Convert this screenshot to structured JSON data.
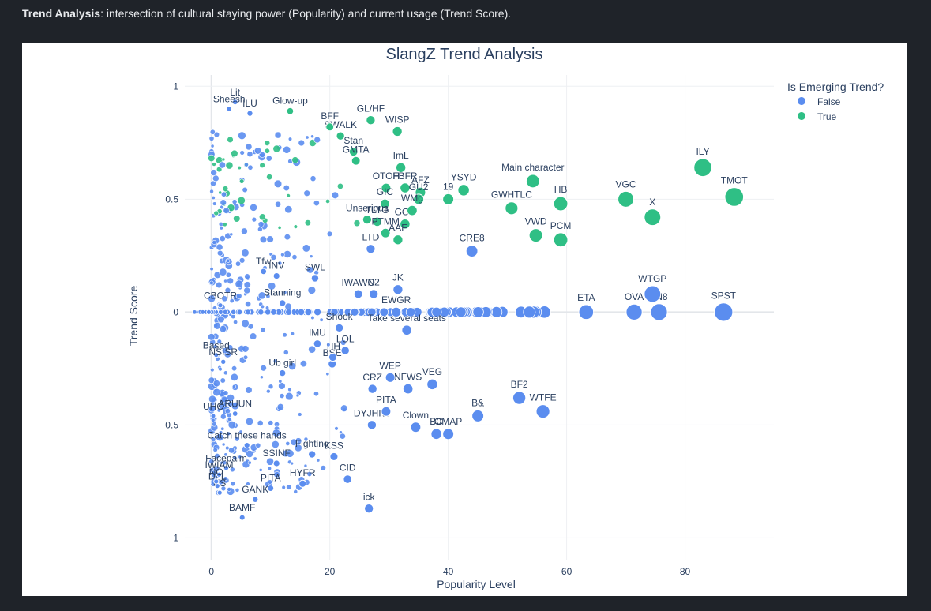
{
  "caption": {
    "bold": "Trend Analysis",
    "rest": ": intersection of cultural staying power (Popularity) and current usage (Trend Score)."
  },
  "colors": {
    "false": "#5b8def",
    "true": "#2fbf85",
    "background": "#1f2329"
  },
  "chart_data": {
    "type": "scatter",
    "title": "SlangZ Trend Analysis",
    "xlabel": "Popularity Level",
    "ylabel": "Trend Score",
    "xlim": [
      -4.5,
      95
    ],
    "ylim": [
      -1.1,
      1.05
    ],
    "xticks": [
      0,
      20,
      40,
      60,
      80
    ],
    "yticks": [
      -1,
      -0.5,
      0,
      0.5,
      1
    ],
    "ytick_labels": [
      "−1",
      "−0.5",
      "0",
      "0.5",
      "1"
    ],
    "legend": {
      "title": "Is Emerging Trend?",
      "position": "top-right",
      "entries": [
        "False",
        "True"
      ]
    },
    "series": [
      {
        "name": "True",
        "points": [
          {
            "label": "ILY",
            "x": 83.0,
            "y": 0.64
          },
          {
            "label": "TMOT",
            "x": 88.3,
            "y": 0.51
          },
          {
            "label": "VGC",
            "x": 70.0,
            "y": 0.5
          },
          {
            "label": "X",
            "x": 74.5,
            "y": 0.42
          },
          {
            "label": "HB",
            "x": 59.0,
            "y": 0.48
          },
          {
            "label": "PCM",
            "x": 59.0,
            "y": 0.32
          },
          {
            "label": "VWD",
            "x": 54.8,
            "y": 0.34
          },
          {
            "label": "GWHTLC",
            "x": 50.7,
            "y": 0.46
          },
          {
            "label": "Main character",
            "x": 54.3,
            "y": 0.58
          },
          {
            "label": "YSYD",
            "x": 42.6,
            "y": 0.54
          },
          {
            "label": "19",
            "x": 40.0,
            "y": 0.5
          },
          {
            "label": "AFZ",
            "x": 35.3,
            "y": 0.53
          },
          {
            "label": "GL/HF",
            "x": 26.9,
            "y": 0.85
          },
          {
            "label": "WISP",
            "x": 31.4,
            "y": 0.8
          },
          {
            "label": "ImL",
            "x": 32.0,
            "y": 0.64
          },
          {
            "label": "Stan",
            "x": 24.0,
            "y": 0.71
          },
          {
            "label": "SWALK",
            "x": 21.8,
            "y": 0.78
          },
          {
            "label": "BFF",
            "x": 20.0,
            "y": 0.82
          },
          {
            "label": "Glow-up",
            "x": 13.3,
            "y": 0.89
          },
          {
            "label": "GMTA",
            "x": 24.4,
            "y": 0.67
          },
          {
            "label": "OTOH",
            "x": 29.5,
            "y": 0.55
          },
          {
            "label": "FBFR",
            "x": 32.7,
            "y": 0.55
          },
          {
            "label": "GU2",
            "x": 35.0,
            "y": 0.5
          },
          {
            "label": "GIC",
            "x": 29.3,
            "y": 0.48
          },
          {
            "label": "TLTG",
            "x": 28.0,
            "y": 0.4
          },
          {
            "label": "PTMM",
            "x": 29.4,
            "y": 0.35
          },
          {
            "label": "GCR",
            "x": 32.7,
            "y": 0.39
          },
          {
            "label": "AAF",
            "x": 31.5,
            "y": 0.32
          },
          {
            "label": "WMg",
            "x": 33.9,
            "y": 0.45
          },
          {
            "label": "Unserious",
            "x": 26.3,
            "y": 0.41
          }
        ]
      },
      {
        "name": "False",
        "points": [
          {
            "label": "SPST",
            "x": 86.5,
            "y": 0.0
          },
          {
            "label": "2N8",
            "x": 75.6,
            "y": 0.0
          },
          {
            "label": "OVA",
            "x": 71.4,
            "y": 0.0
          },
          {
            "label": "ETA",
            "x": 63.3,
            "y": 0.0
          },
          {
            "label": "WTGP",
            "x": 74.5,
            "y": 0.08
          },
          {
            "label": "BF2",
            "x": 52.0,
            "y": -0.38
          },
          {
            "label": "WTFE",
            "x": 56.0,
            "y": -0.44
          },
          {
            "label": "B&",
            "x": 45.0,
            "y": -0.46
          },
          {
            "label": "CRE8",
            "x": 44.0,
            "y": 0.27
          },
          {
            "label": "BC",
            "x": 38.0,
            "y": -0.54
          },
          {
            "label": "OMAP",
            "x": 40.0,
            "y": -0.54
          },
          {
            "label": "Clown",
            "x": 34.5,
            "y": -0.51
          },
          {
            "label": "VEG",
            "x": 37.3,
            "y": -0.32
          },
          {
            "label": "NFWS",
            "x": 33.2,
            "y": -0.34
          },
          {
            "label": "WEP",
            "x": 30.2,
            "y": -0.29
          },
          {
            "label": "CRZ",
            "x": 27.2,
            "y": -0.34
          },
          {
            "label": "ick",
            "x": 26.6,
            "y": -0.87
          },
          {
            "label": "CID",
            "x": 23.0,
            "y": -0.74
          },
          {
            "label": "HYFR",
            "x": 15.4,
            "y": -0.76
          },
          {
            "label": "PITA",
            "x": 10.0,
            "y": -0.78
          },
          {
            "label": "GANK",
            "x": 7.4,
            "y": -0.83
          },
          {
            "label": "BAMF",
            "x": 5.2,
            "y": -0.91
          },
          {
            "label": "KS",
            "x": 1.4,
            "y": -0.8
          },
          {
            "label": "DFL",
            "x": 1.0,
            "y": -0.77
          },
          {
            "label": "JK",
            "x": 31.5,
            "y": 0.1
          },
          {
            "label": "IWAWO",
            "x": 24.8,
            "y": 0.08
          },
          {
            "label": "N2",
            "x": 27.4,
            "y": 0.08
          },
          {
            "label": "SWL",
            "x": 17.5,
            "y": 0.15
          },
          {
            "label": "Take several seats",
            "x": 33.0,
            "y": -0.08
          },
          {
            "label": "EWGR",
            "x": 31.2,
            "y": 0.0
          },
          {
            "label": "IMU",
            "x": 17.9,
            "y": -0.14
          },
          {
            "label": "Based",
            "x": 0.8,
            "y": -0.19
          },
          {
            "label": "NSISR",
            "x": 2.0,
            "y": -0.22
          },
          {
            "label": "BSE",
            "x": 20.4,
            "y": -0.23
          },
          {
            "label": "TIH",
            "x": 20.5,
            "y": -0.2
          },
          {
            "label": "LOL",
            "x": 22.6,
            "y": -0.17
          },
          {
            "label": "Stanning",
            "x": 12.0,
            "y": 0.04
          },
          {
            "label": "Tfw",
            "x": 8.8,
            "y": 0.18
          },
          {
            "label": "INV",
            "x": 11.0,
            "y": 0.16
          },
          {
            "label": "LTD",
            "x": 26.9,
            "y": 0.28
          },
          {
            "label": "Lit",
            "x": 4.0,
            "y": 0.93
          },
          {
            "label": "Sheesh",
            "x": 3.0,
            "y": 0.9
          },
          {
            "label": "ILU",
            "x": 6.5,
            "y": 0.88
          },
          {
            "label": "Ub girl",
            "x": 12.0,
            "y": -0.27
          },
          {
            "label": "Catch these hands",
            "x": 6.0,
            "y": -0.59
          },
          {
            "label": "Facepalm",
            "x": 2.5,
            "y": -0.69
          },
          {
            "label": "IWIAM",
            "x": 1.3,
            "y": -0.72
          },
          {
            "label": "NO",
            "x": 0.8,
            "y": -0.75
          },
          {
            "label": "SSINF",
            "x": 11.0,
            "y": -0.67
          },
          {
            "label": "Fighting",
            "x": 17.0,
            "y": -0.63
          },
          {
            "label": "KSS",
            "x": 20.7,
            "y": -0.64
          },
          {
            "label": "UHC",
            "x": 0.3,
            "y": -0.46
          },
          {
            "label": "DYJHIW",
            "x": 27.1,
            "y": -0.5
          },
          {
            "label": "PITA",
            "x": 29.5,
            "y": -0.44
          },
          {
            "label": "Shook",
            "x": 21.6,
            "y": -0.07
          },
          {
            "label": "ARUUN",
            "x": 4.0,
            "y": -0.45
          },
          {
            "label": "CBOTR",
            "x": 1.5,
            "y": 0.03
          }
        ]
      }
    ]
  }
}
